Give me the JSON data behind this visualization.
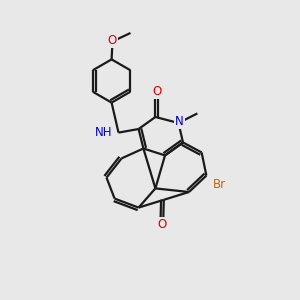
{
  "background_color": "#e8e8e8",
  "bond_color": "#1a1a1a",
  "atom_colors": {
    "O": "#dd0000",
    "N": "#0000cc",
    "Br": "#cc6600",
    "C": "#1a1a1a"
  },
  "figsize": [
    3.0,
    3.0
  ],
  "dpi": 100
}
